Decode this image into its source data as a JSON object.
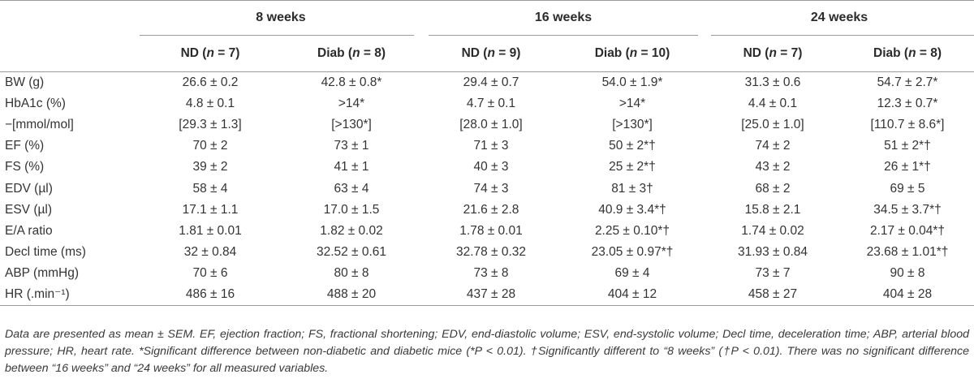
{
  "table": {
    "groups": [
      "8 weeks",
      "16 weeks",
      "24 weeks"
    ],
    "subheaders": [
      {
        "label": "ND",
        "n": "n",
        "eq": " = 7"
      },
      {
        "label": "Diab",
        "n": "n",
        "eq": " = 8"
      },
      {
        "label": "ND",
        "n": "n",
        "eq": " = 9"
      },
      {
        "label": "Diab",
        "n": "n",
        "eq": " = 10"
      },
      {
        "label": "ND",
        "n": "n",
        "eq": " = 7"
      },
      {
        "label": "Diab",
        "n": "n",
        "eq": " = 8"
      }
    ],
    "rows": [
      {
        "label": "BW (g)",
        "cells": [
          "26.6 ± 0.2",
          "42.8 ± 0.8*",
          "29.4 ± 0.7",
          "54.0 ± 1.9*",
          "31.3 ± 0.6",
          "54.7 ± 2.7*"
        ]
      },
      {
        "label": "HbA1c (%)",
        "cells": [
          "4.8 ± 0.1",
          ">14*",
          "4.7 ± 0.1",
          ">14*",
          "4.4 ±  0.1",
          "12.3 ±  0.7*"
        ]
      },
      {
        "label": "−[mmol/mol]",
        "cells": [
          "[29.3 ± 1.3]",
          "[>130*]",
          "[28.0 ± 1.0]",
          "[>130*]",
          "[25.0 ± 1.0]",
          "[110.7 ± 8.6*]"
        ]
      },
      {
        "label": "EF (%)",
        "cells": [
          "70 ± 2",
          "73 ± 1",
          "71 ± 3",
          "50 ± 2*†",
          "74 ± 2",
          "51 ± 2*†"
        ]
      },
      {
        "label": "FS (%)",
        "cells": [
          "39 ± 2",
          "41 ± 1",
          "40 ± 3",
          "25 ± 2*†",
          "43 ± 2",
          "26 ± 1*†"
        ]
      },
      {
        "label": "EDV (µl)",
        "cells": [
          "58 ± 4",
          "63 ± 4",
          "74 ± 3",
          "81 ± 3†",
          "68 ± 2",
          "69 ± 5"
        ]
      },
      {
        "label": "ESV (µl)",
        "cells": [
          "17.1 ± 1.1",
          "17.0 ± 1.5",
          "21.6 ± 2.8",
          "40.9 ± 3.4*†",
          "15.8 ± 2.1",
          "34.5 ± 3.7*†"
        ]
      },
      {
        "label": "E/A ratio",
        "cells": [
          "1.81 ± 0.01",
          "1.82 ± 0.02",
          "1.78 ± 0.01",
          "2.25 ± 0.10*†",
          "1.74 ± 0.02",
          "2.17 ± 0.04*†"
        ]
      },
      {
        "label": "Decl time (ms)",
        "cells": [
          "32 ± 0.84",
          "32.52 ± 0.61",
          "32.78 ± 0.32",
          "23.05 ± 0.97*†",
          "31.93 ± 0.84",
          "23.68 ± 1.01*†"
        ]
      },
      {
        "label": "ABP (mmHg)",
        "cells": [
          "70 ± 6",
          "80 ± 8",
          "73 ± 8",
          "69 ± 4",
          "73 ± 7",
          "90 ± 8"
        ]
      },
      {
        "label": "HR (.min⁻¹)",
        "cells": [
          "486 ± 16",
          "488 ± 20",
          "437 ± 28",
          "404 ± 12",
          "458 ± 27",
          "404 ± 28"
        ]
      }
    ],
    "footnote": "Data are presented as mean ± SEM. EF, ejection fraction; FS, fractional shortening; EDV, end-diastolic volume; ESV, end-systolic volume; Decl time, deceleration time; ABP, arterial blood pressure; HR, heart rate. *Significant difference between non-diabetic and diabetic mice (*P < 0.01). †Significantly different to “8 weeks” (†P < 0.01). There was no significant difference between “16 weeks” and “24 weeks” for all measured variables."
  }
}
